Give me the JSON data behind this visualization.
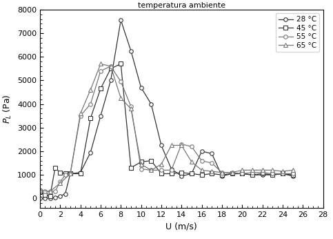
{
  "title": "temperatura ambiente",
  "xlabel": "U (m/s)",
  "ylabel": "$P_L$ (Pa)",
  "xlim": [
    0,
    28
  ],
  "ylim": [
    -400,
    8000
  ],
  "yticks": [
    0,
    1000,
    2000,
    3000,
    4000,
    5000,
    6000,
    7000,
    8000
  ],
  "xticks": [
    0,
    2,
    4,
    6,
    8,
    10,
    12,
    14,
    16,
    18,
    20,
    22,
    24,
    26,
    28
  ],
  "series": [
    {
      "label": "28 °C",
      "marker": "o",
      "color": "#333333",
      "markersize": 4,
      "linewidth": 0.9,
      "x": [
        0,
        0.5,
        1,
        1.5,
        2,
        2.5,
        3,
        4,
        5,
        6,
        7,
        8,
        9,
        10,
        11,
        12,
        13,
        14,
        15,
        16,
        17,
        18,
        19,
        20,
        21,
        22,
        23,
        24,
        25
      ],
      "y": [
        0,
        10,
        20,
        50,
        100,
        200,
        1050,
        1100,
        1950,
        3500,
        5000,
        7550,
        6250,
        4700,
        4000,
        2250,
        1250,
        950,
        1050,
        2000,
        1900,
        950,
        1050,
        1050,
        1000,
        1000,
        1000,
        1050,
        950
      ]
    },
    {
      "label": "45 °C",
      "marker": "s",
      "color": "#333333",
      "markersize": 4,
      "linewidth": 0.9,
      "x": [
        0,
        0.5,
        1,
        1.5,
        2,
        2.5,
        3,
        4,
        5,
        6,
        7,
        8,
        9,
        10,
        11,
        12,
        13,
        14,
        15,
        16,
        17,
        18,
        19,
        20,
        21,
        22,
        23,
        24,
        25
      ],
      "y": [
        300,
        150,
        100,
        1300,
        1100,
        1050,
        1050,
        1050,
        3400,
        4650,
        5500,
        5700,
        1300,
        1550,
        1600,
        1050,
        1050,
        1100,
        1050,
        1000,
        1050,
        1000,
        1050,
        1050,
        1000,
        1050,
        1000,
        1050,
        1000
      ]
    },
    {
      "label": "55 °C",
      "marker": "o",
      "color": "#777777",
      "markersize": 4,
      "linewidth": 0.9,
      "x": [
        0,
        0.5,
        1,
        1.5,
        2,
        2.5,
        3,
        4,
        5,
        6,
        7,
        8,
        9,
        10,
        11,
        12,
        13,
        14,
        15,
        16,
        17,
        18,
        19,
        20,
        21,
        22,
        23,
        24,
        25
      ],
      "y": [
        350,
        300,
        300,
        300,
        700,
        1000,
        1050,
        3500,
        4000,
        5400,
        5600,
        4950,
        3900,
        1250,
        1200,
        1200,
        1200,
        2300,
        2200,
        1600,
        1500,
        1100,
        1100,
        1050,
        1100,
        1100,
        1050,
        1050,
        1050
      ]
    },
    {
      "label": "65 °C",
      "marker": "^",
      "color": "#777777",
      "markersize": 4,
      "linewidth": 0.9,
      "x": [
        0,
        1,
        2,
        3,
        4,
        5,
        6,
        7,
        8,
        9,
        10,
        11,
        12,
        13,
        14,
        15,
        16,
        17,
        18,
        19,
        20,
        21,
        22,
        23,
        24,
        25
      ],
      "y": [
        350,
        300,
        650,
        1050,
        3600,
        4600,
        5700,
        5600,
        4250,
        3800,
        1450,
        1200,
        1450,
        2250,
        2250,
        1550,
        1200,
        1150,
        1100,
        1100,
        1200,
        1200,
        1200,
        1200,
        1150,
        1200
      ]
    }
  ],
  "background_color": "#ffffff",
  "title_fontsize": 8,
  "label_fontsize": 9,
  "tick_fontsize": 8,
  "legend_fontsize": 7.5
}
